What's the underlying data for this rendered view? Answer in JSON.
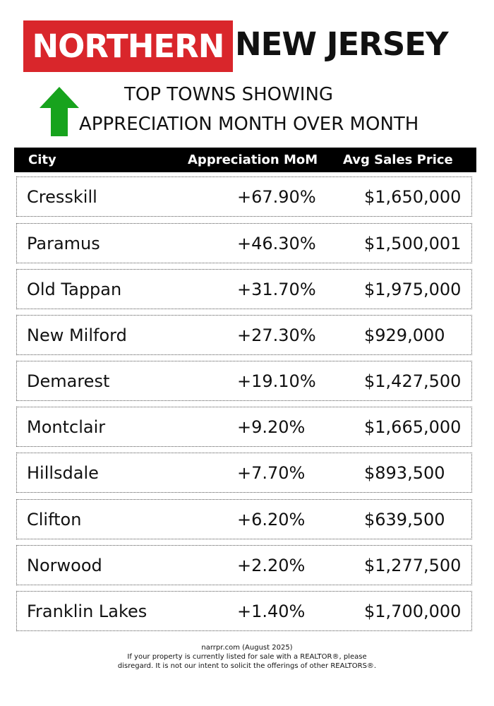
{
  "title": {
    "part1": "NORTHERN",
    "part2": "NEW JERSEY"
  },
  "subtitle": {
    "line1": "TOP TOWNS SHOWING",
    "line2": "APPRECIATION MONTH OVER MONTH"
  },
  "colors": {
    "accent_red": "#d9262b",
    "arrow_green": "#17a31d",
    "header_bg": "#000000"
  },
  "table": {
    "headers": {
      "city": "City",
      "appreciation": "Appreciation MoM",
      "price": "Avg Sales Price"
    },
    "rows": [
      {
        "city": "Cresskill",
        "appreciation": "+67.90%",
        "price": "$1,650,000"
      },
      {
        "city": "Paramus",
        "appreciation": "+46.30%",
        "price": "$1,500,001"
      },
      {
        "city": "Old Tappan",
        "appreciation": "+31.70%",
        "price": "$1,975,000"
      },
      {
        "city": "New Milford",
        "appreciation": "+27.30%",
        "price": "$929,000"
      },
      {
        "city": "Demarest",
        "appreciation": "+19.10%",
        "price": "$1,427,500"
      },
      {
        "city": "Montclair",
        "appreciation": "+9.20%",
        "price": "$1,665,000"
      },
      {
        "city": "Hillsdale",
        "appreciation": "+7.70%",
        "price": "$893,500"
      },
      {
        "city": "Clifton",
        "appreciation": "+6.20%",
        "price": "$639,500"
      },
      {
        "city": "Norwood",
        "appreciation": "+2.20%",
        "price": "$1,277,500"
      },
      {
        "city": "Franklin Lakes",
        "appreciation": "+1.40%",
        "price": "$1,700,000"
      }
    ]
  },
  "footer": {
    "source": "narrpr.com (August 2025)",
    "disclaimer_line1": "If your property is currently listed for sale with a REALTOR®, please",
    "disclaimer_line2": "disregard. It is not our intent to solicit the offerings of other REALTORS®."
  }
}
